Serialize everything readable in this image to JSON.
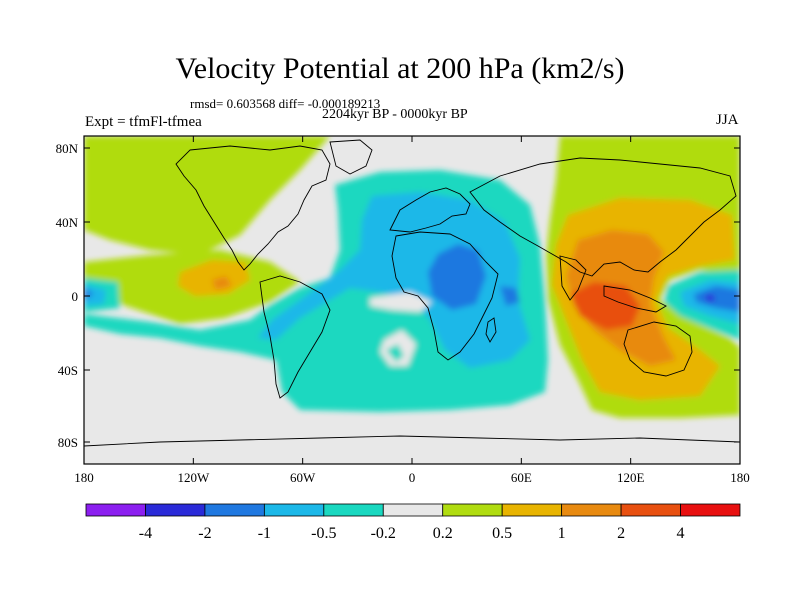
{
  "title": "Velocity Potential at 200 hPa (km2/s)",
  "stats": "rmsd= 0.603568 diff= -0.000189213",
  "period": "2204kyr BP - 0000kyr BP",
  "experiment": "Expt = tfmFl-tfmea",
  "season": "JJA",
  "lat_ticks": [
    "80N",
    "40N",
    "0",
    "40S",
    "80S"
  ],
  "lon_ticks": [
    "180",
    "120W",
    "60W",
    "0",
    "60E",
    "120E",
    "180"
  ],
  "colorbar": {
    "labels": [
      "-4",
      "-2",
      "-1",
      "-0.5",
      "-0.2",
      "0.2",
      "0.5",
      "1",
      "2",
      "4"
    ],
    "colors": [
      "#8c1ff0",
      "#2a2ad8",
      "#1f78e0",
      "#1cb8e8",
      "#1ad8c0",
      "#e8e8e8",
      "#b0dc10",
      "#e8b400",
      "#e88a10",
      "#e85010",
      "#e81010"
    ]
  },
  "colors": {
    "neutral": "#e8e8e8",
    "neg_02": "#1ad8c0",
    "neg_05": "#1cb8e8",
    "neg_1": "#1f78e0",
    "neg_2": "#2a2ad8",
    "pos_02": "#b0dc10",
    "pos_05": "#e8b400",
    "pos_1": "#e88a10",
    "pos_2": "#e85010"
  }
}
